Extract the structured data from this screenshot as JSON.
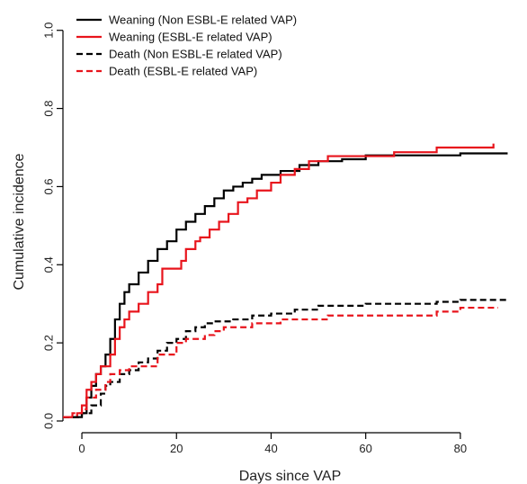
{
  "chart_data": {
    "type": "line",
    "title": "",
    "xlabel": "Days since VAP",
    "ylabel": "Cumulative incidence",
    "xlim": [
      -4,
      92
    ],
    "ylim": [
      -0.03,
      1.05
    ],
    "x_ticks": [
      0,
      20,
      40,
      60,
      80
    ],
    "y_ticks": [
      0.0,
      0.2,
      0.4,
      0.6,
      0.8,
      1.0
    ],
    "y_tick_labels": [
      "0.0",
      "0.2",
      "0.4",
      "0.6",
      "0.8",
      "1.0"
    ],
    "grid": false,
    "legend_position": "top-left",
    "step": true,
    "series": [
      {
        "name": "Weaning (Non ESBL-E related VAP)",
        "color": "#000000",
        "dash": "solid",
        "points": [
          [
            -4,
            0.01
          ],
          [
            0,
            0.02
          ],
          [
            1,
            0.06
          ],
          [
            2,
            0.09
          ],
          [
            3,
            0.12
          ],
          [
            4,
            0.14
          ],
          [
            5,
            0.17
          ],
          [
            6,
            0.21
          ],
          [
            7,
            0.26
          ],
          [
            8,
            0.3
          ],
          [
            9,
            0.33
          ],
          [
            10,
            0.35
          ],
          [
            12,
            0.38
          ],
          [
            14,
            0.41
          ],
          [
            16,
            0.44
          ],
          [
            18,
            0.46
          ],
          [
            20,
            0.49
          ],
          [
            22,
            0.51
          ],
          [
            24,
            0.53
          ],
          [
            26,
            0.55
          ],
          [
            28,
            0.57
          ],
          [
            30,
            0.59
          ],
          [
            32,
            0.6
          ],
          [
            34,
            0.61
          ],
          [
            36,
            0.62
          ],
          [
            38,
            0.63
          ],
          [
            42,
            0.64
          ],
          [
            46,
            0.655
          ],
          [
            50,
            0.665
          ],
          [
            55,
            0.67
          ],
          [
            60,
            0.68
          ],
          [
            75,
            0.68
          ],
          [
            80,
            0.685
          ],
          [
            90,
            0.685
          ]
        ]
      },
      {
        "name": "Weaning (ESBL-E related VAP)",
        "color": "#e8141c",
        "dash": "solid",
        "points": [
          [
            -4,
            0.01
          ],
          [
            -1,
            0.02
          ],
          [
            0,
            0.04
          ],
          [
            1,
            0.08
          ],
          [
            2,
            0.1
          ],
          [
            3,
            0.12
          ],
          [
            4,
            0.14
          ],
          [
            6,
            0.17
          ],
          [
            7,
            0.21
          ],
          [
            8,
            0.24
          ],
          [
            9,
            0.26
          ],
          [
            10,
            0.28
          ],
          [
            12,
            0.3
          ],
          [
            14,
            0.33
          ],
          [
            16,
            0.35
          ],
          [
            17,
            0.39
          ],
          [
            20,
            0.39
          ],
          [
            21,
            0.41
          ],
          [
            22,
            0.44
          ],
          [
            24,
            0.46
          ],
          [
            25,
            0.47
          ],
          [
            27,
            0.49
          ],
          [
            29,
            0.51
          ],
          [
            31,
            0.53
          ],
          [
            33,
            0.56
          ],
          [
            35,
            0.57
          ],
          [
            37,
            0.59
          ],
          [
            40,
            0.61
          ],
          [
            42,
            0.63
          ],
          [
            45,
            0.645
          ],
          [
            48,
            0.665
          ],
          [
            52,
            0.678
          ],
          [
            60,
            0.678
          ],
          [
            66,
            0.688
          ],
          [
            75,
            0.7
          ],
          [
            87,
            0.71
          ]
        ]
      },
      {
        "name": "Death (Non ESBL-E related VAP)",
        "color": "#000000",
        "dash": "dashed",
        "points": [
          [
            -4,
            0.01
          ],
          [
            0,
            0.02
          ],
          [
            2,
            0.04
          ],
          [
            4,
            0.07
          ],
          [
            5,
            0.09
          ],
          [
            6,
            0.1
          ],
          [
            8,
            0.12
          ],
          [
            10,
            0.13
          ],
          [
            12,
            0.15
          ],
          [
            14,
            0.16
          ],
          [
            16,
            0.18
          ],
          [
            18,
            0.2
          ],
          [
            20,
            0.21
          ],
          [
            22,
            0.23
          ],
          [
            24,
            0.24
          ],
          [
            26,
            0.25
          ],
          [
            28,
            0.255
          ],
          [
            32,
            0.26
          ],
          [
            36,
            0.27
          ],
          [
            40,
            0.275
          ],
          [
            45,
            0.285
          ],
          [
            50,
            0.295
          ],
          [
            60,
            0.3
          ],
          [
            70,
            0.3
          ],
          [
            75,
            0.305
          ],
          [
            80,
            0.31
          ],
          [
            90,
            0.31
          ]
        ]
      },
      {
        "name": "Death (ESBL-E related VAP)",
        "color": "#e8141c",
        "dash": "dashed",
        "points": [
          [
            -4,
            0.01
          ],
          [
            -2,
            0.02
          ],
          [
            0,
            0.03
          ],
          [
            1,
            0.06
          ],
          [
            3,
            0.08
          ],
          [
            5,
            0.1
          ],
          [
            6,
            0.12
          ],
          [
            8,
            0.13
          ],
          [
            10,
            0.14
          ],
          [
            13,
            0.14
          ],
          [
            16,
            0.17
          ],
          [
            20,
            0.2
          ],
          [
            22,
            0.21
          ],
          [
            26,
            0.22
          ],
          [
            28,
            0.23
          ],
          [
            30,
            0.24
          ],
          [
            36,
            0.25
          ],
          [
            42,
            0.26
          ],
          [
            52,
            0.27
          ],
          [
            75,
            0.28
          ],
          [
            80,
            0.29
          ],
          [
            88,
            0.29
          ]
        ]
      }
    ]
  }
}
